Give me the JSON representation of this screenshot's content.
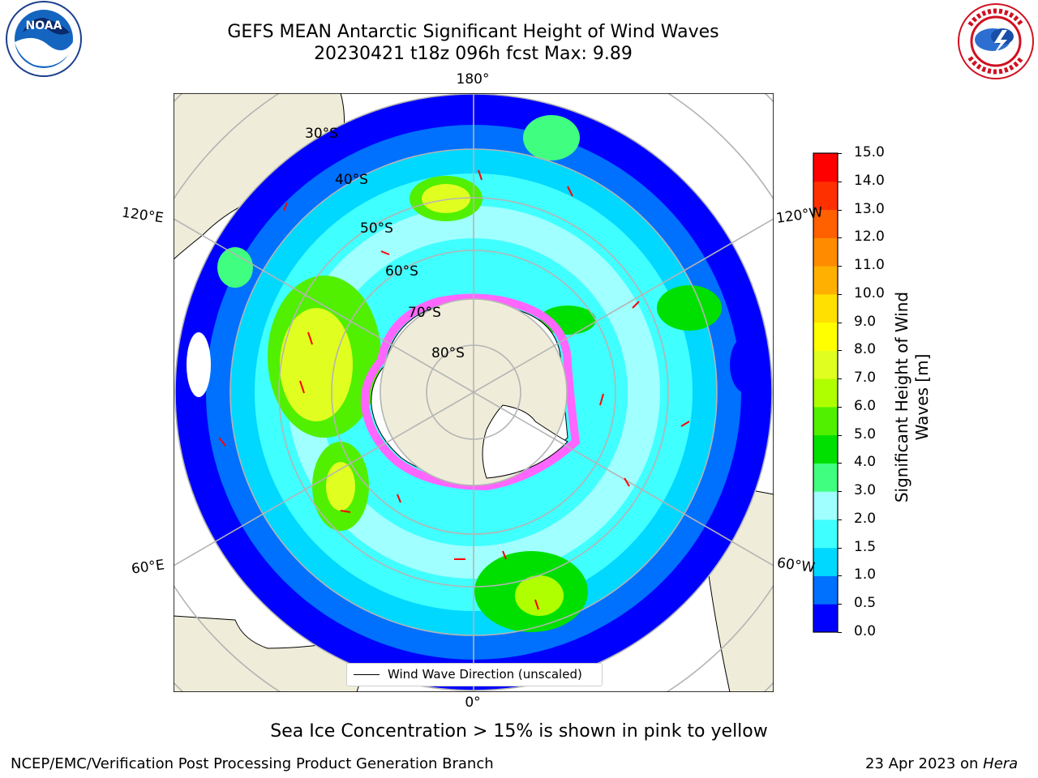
{
  "header": {
    "title_line1": "GEFS MEAN Antarctic Significant Height of Wind Waves",
    "title_line2": "20230421 t18z 096h fcst   Max: 9.89"
  },
  "logos": {
    "left": "noaa-logo",
    "right": "national-weather-service-logo",
    "noaa_text": "NOAA",
    "nws_text": "NATIONAL WEATHER SERVICE"
  },
  "map": {
    "projection": "south-polar-stereographic",
    "longitude_labels": {
      "top": "180°",
      "bottom": "0°",
      "upper_left": "120°E",
      "upper_right": "120°W",
      "lower_left": "60°E",
      "lower_right": "60°W"
    },
    "latitude_labels": [
      "30°S",
      "40°S",
      "50°S",
      "60°S",
      "70°S",
      "80°S"
    ],
    "legend": {
      "label": "Wind Wave Direction (unscaled)"
    },
    "arrow_color": "#ff0000",
    "land_color": "#efedd9",
    "sea_ice_color": "#ff66ff"
  },
  "colorbar": {
    "label_line1": "Significant Height of Wind",
    "label_line2": "Waves [m]",
    "ticks": [
      "0.0",
      "0.5",
      "1.0",
      "1.5",
      "2.0",
      "3.0",
      "4.0",
      "5.0",
      "6.0",
      "7.0",
      "8.0",
      "9.0",
      "10.0",
      "11.0",
      "12.0",
      "13.0",
      "14.0",
      "15.0"
    ],
    "colors": [
      "#0000ff",
      "#0070ff",
      "#00d8ff",
      "#40ffff",
      "#a0ffff",
      "#40ff80",
      "#00e000",
      "#50f000",
      "#b0ff00",
      "#e0ff20",
      "#ffff00",
      "#ffe000",
      "#ffb000",
      "#ff8c00",
      "#ff6000",
      "#ff3000",
      "#ff0000"
    ]
  },
  "notes": {
    "sea_ice": "Sea Ice Concentration > 15% is shown in pink to yellow"
  },
  "footer": {
    "left": "NCEP/EMC/Verification Post Processing Product Generation Branch",
    "right_prefix": "23 Apr 2023 on ",
    "right_host": "Hera"
  }
}
